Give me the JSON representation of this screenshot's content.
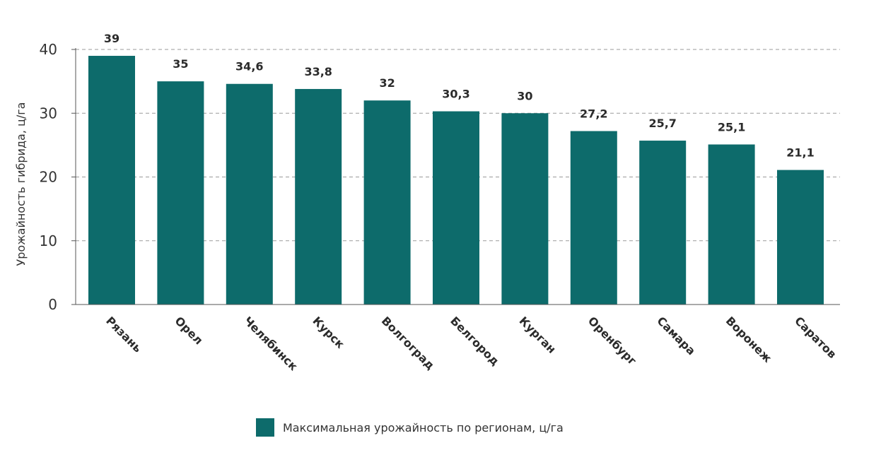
{
  "chart_data": {
    "type": "bar",
    "categories": [
      "Рязань",
      "Орел",
      "Челябинск",
      "Курск",
      "Волгоград",
      "Белгород",
      "Курган",
      "Оренбург",
      "Самара",
      "Воронеж",
      "Саратов"
    ],
    "series": [
      {
        "name": "Максимальная урожайность по регионам, ц/га",
        "values": [
          39,
          35,
          34.6,
          33.8,
          32,
          30.3,
          30,
          27.2,
          25.7,
          25.1,
          21.1
        ],
        "labels": [
          "39",
          "35",
          "34,6",
          "33,8",
          "32",
          "30,3",
          "30",
          "27,2",
          "25,7",
          "25,1",
          "21,1"
        ]
      }
    ],
    "ylabel": "Урожайность гибрида, ц/га",
    "xlabel": "",
    "ylim": [
      0,
      40
    ],
    "yticks": [
      "0",
      "10",
      "20",
      "30",
      "40"
    ],
    "grid": "horizontal dashed",
    "legend_position": "bottom",
    "bar_color": "#0d6b6b"
  }
}
